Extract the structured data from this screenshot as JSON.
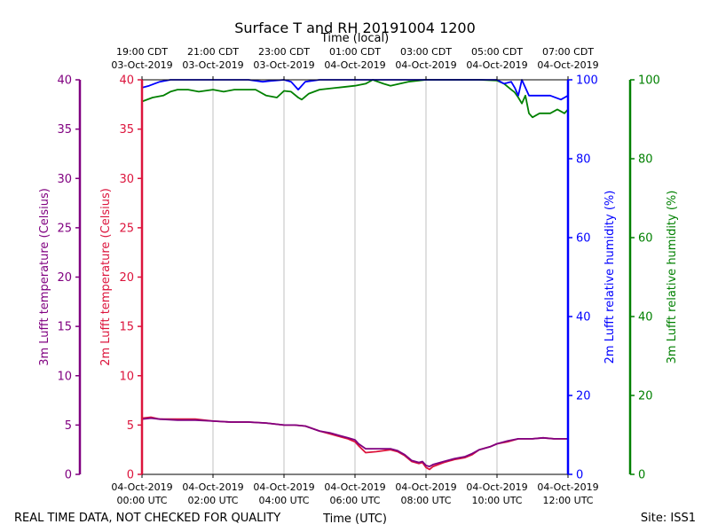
{
  "chart_data": {
    "type": "line",
    "title": "Surface T and RH 20191004 1200",
    "top_axis_label": "Time (local)",
    "xlabel": "Time (UTC)",
    "footer_left": "REAL TIME DATA, NOT CHECKED FOR QUALITY",
    "footer_right": "Site: ISS1",
    "x_range_utc_hours": [
      0,
      12
    ],
    "grid": "vertical",
    "ticks_utc": [
      {
        "hour": 0,
        "line1": "04-Oct-2019",
        "line2": "00:00 UTC"
      },
      {
        "hour": 2,
        "line1": "04-Oct-2019",
        "line2": "02:00 UTC"
      },
      {
        "hour": 4,
        "line1": "04-Oct-2019",
        "line2": "04:00 UTC"
      },
      {
        "hour": 6,
        "line1": "04-Oct-2019",
        "line2": "06:00 UTC"
      },
      {
        "hour": 8,
        "line1": "04-Oct-2019",
        "line2": "08:00 UTC"
      },
      {
        "hour": 10,
        "line1": "04-Oct-2019",
        "line2": "10:00 UTC"
      },
      {
        "hour": 12,
        "line1": "04-Oct-2019",
        "line2": "12:00 UTC"
      }
    ],
    "ticks_local": [
      {
        "hour": 0,
        "line1": "19:00 CDT",
        "line2": "03-Oct-2019"
      },
      {
        "hour": 2,
        "line1": "21:00 CDT",
        "line2": "03-Oct-2019"
      },
      {
        "hour": 4,
        "line1": "23:00 CDT",
        "line2": "03-Oct-2019"
      },
      {
        "hour": 6,
        "line1": "01:00 CDT",
        "line2": "04-Oct-2019"
      },
      {
        "hour": 8,
        "line1": "03:00 CDT",
        "line2": "04-Oct-2019"
      },
      {
        "hour": 10,
        "line1": "05:00 CDT",
        "line2": "04-Oct-2019"
      },
      {
        "hour": 12,
        "line1": "07:00 CDT",
        "line2": "04-Oct-2019"
      }
    ],
    "axes": {
      "t3m": {
        "label": "3m Lufft temperature (Celsius)",
        "range": [
          0,
          40
        ],
        "ticks": [
          0,
          5,
          10,
          15,
          20,
          25,
          30,
          35,
          40
        ],
        "color": "#800080"
      },
      "t2m": {
        "label": "2m Lufft temperature (Celsius)",
        "range": [
          0,
          40
        ],
        "ticks": [
          0,
          5,
          10,
          15,
          20,
          25,
          30,
          35,
          40
        ],
        "color": "#dc143c"
      },
      "rh2m": {
        "label": "2m Lufft relative humidity (%)",
        "range": [
          0,
          100
        ],
        "ticks": [
          0,
          20,
          40,
          60,
          80,
          100
        ],
        "color": "#0000ff"
      },
      "rh3m": {
        "label": "3m Lufft relative humidity (%)",
        "range": [
          0,
          100
        ],
        "ticks": [
          0,
          20,
          40,
          60,
          80,
          100
        ],
        "color": "#008000"
      }
    },
    "series": [
      {
        "axis": "t2m",
        "color": "#dc143c",
        "x": [
          0,
          0.25,
          0.5,
          1,
          1.5,
          2,
          2.5,
          3,
          3.5,
          4,
          4.3,
          4.6,
          5,
          5.3,
          5.6,
          5.8,
          6,
          6.1,
          6.3,
          6.6,
          7,
          7.2,
          7.4,
          7.6,
          7.8,
          7.9,
          8,
          8.1,
          8.2,
          8.5,
          8.8,
          9.1,
          9.3,
          9.5,
          9.8,
          10,
          10.3,
          10.6,
          11,
          11.3,
          11.6,
          12
        ],
        "y": [
          5.7,
          5.8,
          5.6,
          5.6,
          5.6,
          5.4,
          5.3,
          5.3,
          5.2,
          5.0,
          5.0,
          4.9,
          4.4,
          4.1,
          3.8,
          3.6,
          3.3,
          2.9,
          2.2,
          2.3,
          2.5,
          2.3,
          1.9,
          1.3,
          1.1,
          1.2,
          0.7,
          0.5,
          0.8,
          1.2,
          1.5,
          1.7,
          2.0,
          2.5,
          2.8,
          3.1,
          3.3,
          3.6,
          3.6,
          3.7,
          3.6,
          3.6
        ]
      },
      {
        "axis": "t3m",
        "color": "#800080",
        "x": [
          0,
          0.25,
          0.5,
          1,
          1.5,
          2,
          2.5,
          3,
          3.5,
          4,
          4.3,
          4.6,
          5,
          5.3,
          5.6,
          5.8,
          6,
          6.1,
          6.3,
          6.6,
          7,
          7.2,
          7.4,
          7.6,
          7.8,
          7.9,
          8,
          8.1,
          8.2,
          8.5,
          8.8,
          9.1,
          9.3,
          9.5,
          9.8,
          10,
          10.3,
          10.6,
          11,
          11.3,
          11.6,
          12
        ],
        "y": [
          5.6,
          5.7,
          5.6,
          5.5,
          5.5,
          5.4,
          5.3,
          5.3,
          5.2,
          5.0,
          5.0,
          4.9,
          4.4,
          4.2,
          3.9,
          3.7,
          3.5,
          3.1,
          2.6,
          2.6,
          2.6,
          2.4,
          2.0,
          1.4,
          1.2,
          1.3,
          0.9,
          0.8,
          1.0,
          1.3,
          1.6,
          1.8,
          2.1,
          2.5,
          2.8,
          3.1,
          3.4,
          3.6,
          3.6,
          3.7,
          3.6,
          3.6
        ]
      },
      {
        "axis": "rh2m",
        "color": "#0000ff",
        "x": [
          0,
          0.2,
          0.5,
          0.8,
          1,
          3,
          3.4,
          3.6,
          4,
          4.2,
          4.4,
          4.6,
          5,
          5.4,
          5.5,
          5.8,
          6,
          6.5,
          7,
          10,
          10.2,
          10.4,
          10.5,
          10.6,
          10.7,
          10.8,
          10.9,
          11,
          11.2,
          11.5,
          11.8,
          12
        ],
        "y": [
          98,
          98.5,
          99.5,
          100,
          100,
          100,
          99.5,
          99.7,
          100,
          99.5,
          97.5,
          99.5,
          100,
          100,
          100,
          100,
          100,
          100,
          100,
          100,
          99,
          99.5,
          98,
          96,
          100,
          98,
          96,
          96,
          96,
          96,
          95,
          96
        ]
      },
      {
        "axis": "rh3m",
        "color": "#008000",
        "x": [
          0,
          0.3,
          0.6,
          0.8,
          1,
          1.3,
          1.6,
          2,
          2.3,
          2.6,
          3,
          3.2,
          3.5,
          3.8,
          4,
          4.2,
          4.4,
          4.5,
          4.7,
          5,
          5.5,
          6,
          6.3,
          6.5,
          6.8,
          7,
          7.5,
          8,
          8.2,
          8.5,
          9,
          9.5,
          10,
          10.2,
          10.4,
          10.5,
          10.6,
          10.7,
          10.8,
          10.9,
          11,
          11.2,
          11.5,
          11.7,
          11.9,
          12
        ],
        "y": [
          94.5,
          95.5,
          96,
          97,
          97.5,
          97.5,
          97,
          97.5,
          97,
          97.5,
          97.5,
          97.5,
          96,
          95.5,
          97.2,
          97,
          95.5,
          95,
          96.5,
          97.5,
          98,
          98.5,
          99,
          100,
          99,
          98.5,
          99.5,
          100,
          100,
          100,
          100,
          100,
          99.8,
          99,
          97.5,
          96.8,
          95.5,
          94,
          96,
          91.5,
          90.5,
          91.5,
          91.5,
          92.5,
          91.5,
          92.5
        ]
      }
    ]
  }
}
